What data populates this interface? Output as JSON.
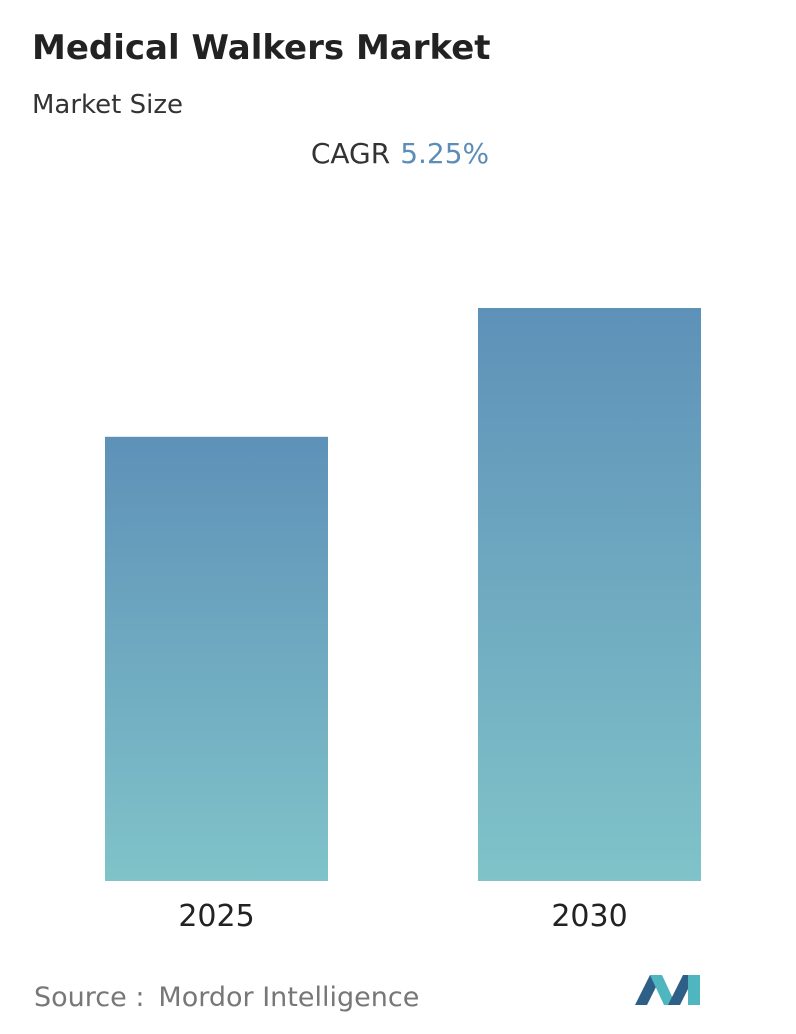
{
  "chart_data": {
    "type": "bar",
    "title": "Medical Walkers Market",
    "subtitle": "Market Size",
    "cagr_label": "CAGR",
    "cagr_value": "5.25%",
    "categories": [
      "2025",
      "2030"
    ],
    "values": [
      1.0,
      1.29
    ],
    "color_top": "#5e91b8",
    "color_bottom": "#80c3c9",
    "source_label": "Source :",
    "source": "Mordor Intelligence"
  }
}
